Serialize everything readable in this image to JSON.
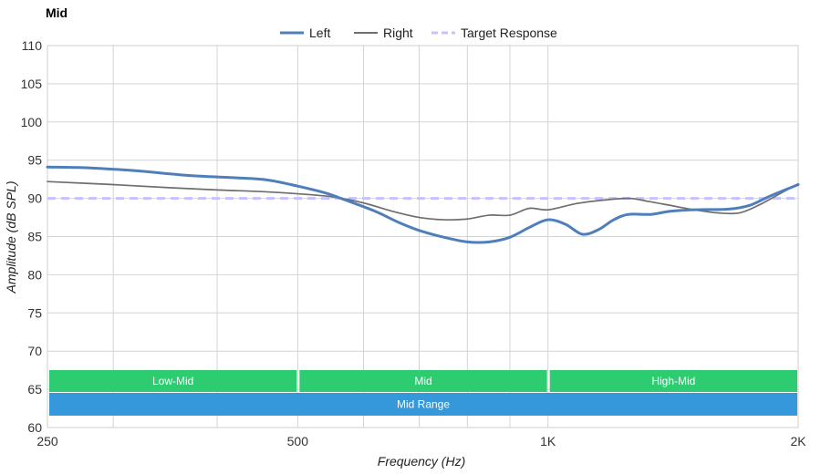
{
  "chart_data": {
    "type": "line",
    "title": "Mid",
    "xlabel": "Frequency (Hz)",
    "ylabel": "Amplitude (dB SPL)",
    "x_scale": "log",
    "xlim": [
      250,
      2000
    ],
    "ylim": [
      60,
      110
    ],
    "y_ticks": [
      60,
      65,
      70,
      75,
      80,
      85,
      90,
      95,
      100,
      105,
      110
    ],
    "x_ticks": [
      {
        "value": 250,
        "label": "250"
      },
      {
        "value": 500,
        "label": "500"
      },
      {
        "value": 1000,
        "label": "1K"
      },
      {
        "value": 2000,
        "label": "2K"
      }
    ],
    "x_gridlines": [
      250,
      300,
      400,
      500,
      600,
      700,
      800,
      900,
      1000,
      2000
    ],
    "grid": true,
    "legend_position": "top-center",
    "series": [
      {
        "name": "Left",
        "color": "#4f7fba",
        "style": "solid-thick",
        "points": [
          [
            250,
            94.1
          ],
          [
            280,
            94.0
          ],
          [
            320,
            93.6
          ],
          [
            370,
            93.0
          ],
          [
            420,
            92.7
          ],
          [
            460,
            92.4
          ],
          [
            500,
            91.6
          ],
          [
            540,
            90.7
          ],
          [
            570,
            89.8
          ],
          [
            620,
            88.3
          ],
          [
            660,
            86.9
          ],
          [
            700,
            85.8
          ],
          [
            750,
            84.9
          ],
          [
            800,
            84.3
          ],
          [
            850,
            84.3
          ],
          [
            900,
            84.9
          ],
          [
            950,
            86.2
          ],
          [
            1000,
            87.2
          ],
          [
            1050,
            86.6
          ],
          [
            1100,
            85.3
          ],
          [
            1150,
            85.9
          ],
          [
            1200,
            87.2
          ],
          [
            1250,
            87.9
          ],
          [
            1330,
            87.9
          ],
          [
            1400,
            88.3
          ],
          [
            1500,
            88.5
          ],
          [
            1650,
            88.6
          ],
          [
            1750,
            89.1
          ],
          [
            1850,
            90.3
          ],
          [
            2000,
            91.8
          ]
        ]
      },
      {
        "name": "Right",
        "color": "#6e6e6e",
        "style": "solid-thin",
        "points": [
          [
            250,
            92.2
          ],
          [
            300,
            91.8
          ],
          [
            350,
            91.4
          ],
          [
            400,
            91.1
          ],
          [
            450,
            90.9
          ],
          [
            500,
            90.6
          ],
          [
            550,
            90.2
          ],
          [
            600,
            89.4
          ],
          [
            650,
            88.3
          ],
          [
            700,
            87.5
          ],
          [
            750,
            87.2
          ],
          [
            800,
            87.3
          ],
          [
            850,
            87.8
          ],
          [
            900,
            87.8
          ],
          [
            950,
            88.7
          ],
          [
            1000,
            88.5
          ],
          [
            1080,
            89.3
          ],
          [
            1150,
            89.7
          ],
          [
            1250,
            90.0
          ],
          [
            1320,
            89.6
          ],
          [
            1400,
            89.1
          ],
          [
            1500,
            88.5
          ],
          [
            1600,
            88.1
          ],
          [
            1700,
            88.1
          ],
          [
            1800,
            89.2
          ],
          [
            1900,
            90.6
          ],
          [
            2000,
            91.9
          ]
        ]
      },
      {
        "name": "Target Response",
        "color": "#c5c3ff",
        "style": "dashed",
        "points": [
          [
            250,
            90
          ],
          [
            2000,
            90
          ]
        ]
      }
    ],
    "bands": [
      {
        "label": "Low-Mid",
        "from": 250,
        "to": 500,
        "row": 1,
        "color": "#2ecc71"
      },
      {
        "label": "Mid",
        "from": 500,
        "to": 1000,
        "row": 1,
        "color": "#2ecc71"
      },
      {
        "label": "High-Mid",
        "from": 1000,
        "to": 2000,
        "row": 1,
        "color": "#2ecc71"
      },
      {
        "label": "Mid Range",
        "from": 250,
        "to": 2000,
        "row": 2,
        "color": "#3498db"
      }
    ]
  }
}
